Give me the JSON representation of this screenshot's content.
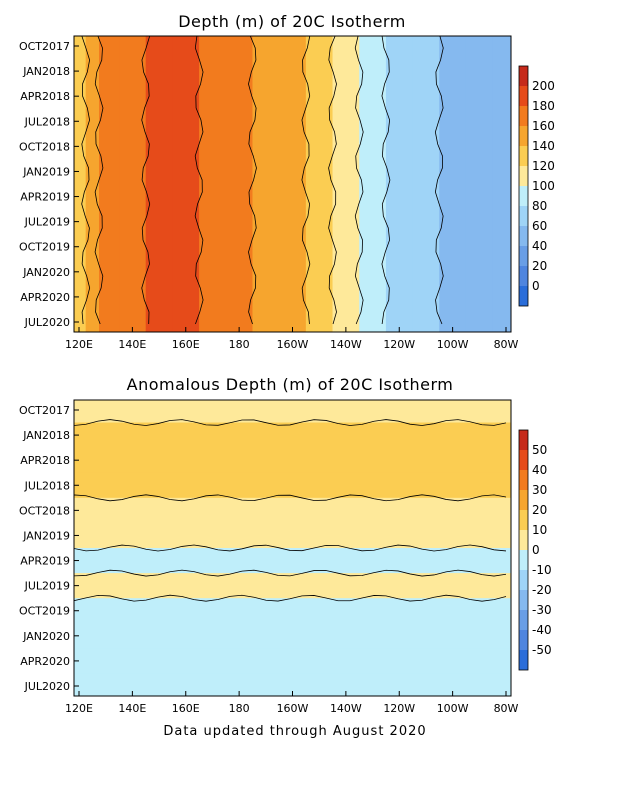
{
  "footer": "Data updated through August 2020",
  "chart_data": [
    {
      "type": "heatmap",
      "title": "Depth (m) of 20C Isotherm",
      "x_ticks": [
        "120E",
        "140E",
        "160E",
        "180",
        "160W",
        "140W",
        "120W",
        "100W",
        "80W"
      ],
      "y_ticks": [
        "OCT2017",
        "JAN2018",
        "APR2018",
        "JUL2018",
        "OCT2018",
        "JAN2019",
        "APR2019",
        "JUL2019",
        "OCT2019",
        "JAN2020",
        "APR2020",
        "JUL2020"
      ],
      "colorbar": {
        "levels": [
          "200",
          "180",
          "160",
          "140",
          "120",
          "100",
          "80",
          "60",
          "40",
          "20",
          "0"
        ],
        "colors": [
          "#c62a1b",
          "#e64b1a",
          "#f27b1e",
          "#f6a52e",
          "#fbcd52",
          "#fee99a",
          "#bfeefa",
          "#9fd4f7",
          "#85b9ef",
          "#699ee6",
          "#4f85df",
          "#2a6dd9"
        ]
      },
      "bands": [
        {
          "lon": 120,
          "value": 130
        },
        {
          "lon": 125,
          "value": 150
        },
        {
          "lon": 130,
          "value": 165
        },
        {
          "lon": 140,
          "value": 175
        },
        {
          "lon": 150,
          "value": 185
        },
        {
          "lon": 160,
          "value": 180
        },
        {
          "lon": 170,
          "value": 175
        },
        {
          "lon": 180,
          "value": 165
        },
        {
          "lon": 190,
          "value": 155
        },
        {
          "lon": 200,
          "value": 140
        },
        {
          "lon": 210,
          "value": 120
        },
        {
          "lon": 220,
          "value": 100
        },
        {
          "lon": 230,
          "value": 80
        },
        {
          "lon": 240,
          "value": 70
        },
        {
          "lon": 250,
          "value": 60
        },
        {
          "lon": 260,
          "value": 50
        },
        {
          "lon": 270,
          "value": 45
        },
        {
          "lon": 280,
          "value": 40
        }
      ]
    },
    {
      "type": "heatmap",
      "title": "Anomalous Depth (m) of 20C Isotherm",
      "x_ticks": [
        "120E",
        "140E",
        "160E",
        "180",
        "160W",
        "140W",
        "120W",
        "100W",
        "80W"
      ],
      "y_ticks": [
        "OCT2017",
        "JAN2018",
        "APR2018",
        "JUL2018",
        "OCT2018",
        "JAN2019",
        "APR2019",
        "JUL2019",
        "OCT2019",
        "JAN2020",
        "APR2020",
        "JUL2020"
      ],
      "colorbar": {
        "levels": [
          "50",
          "40",
          "30",
          "20",
          "10",
          "0",
          "-10",
          "-20",
          "-30",
          "-40",
          "-50"
        ],
        "colors": [
          "#c62a1b",
          "#e64b1a",
          "#f27b1e",
          "#f6a52e",
          "#fbcd52",
          "#fee99a",
          "#bfeefa",
          "#9fd4f7",
          "#85b9ef",
          "#699ee6",
          "#4f85df",
          "#2a6dd9"
        ]
      },
      "bands": [
        {
          "time": "OCT2017",
          "value": 5
        },
        {
          "time": "JAN2018",
          "value": 10
        },
        {
          "time": "APR2018",
          "value": 12
        },
        {
          "time": "JUL2018",
          "value": 10
        },
        {
          "time": "OCT2018",
          "value": 8
        },
        {
          "time": "JAN2019",
          "value": 2
        },
        {
          "time": "APR2019",
          "value": -5
        },
        {
          "time": "JUL2019",
          "value": 3
        },
        {
          "time": "OCT2019",
          "value": -6
        },
        {
          "time": "JAN2020",
          "value": -4
        },
        {
          "time": "APR2020",
          "value": -3
        },
        {
          "time": "JUL2020",
          "value": -7
        }
      ]
    }
  ]
}
